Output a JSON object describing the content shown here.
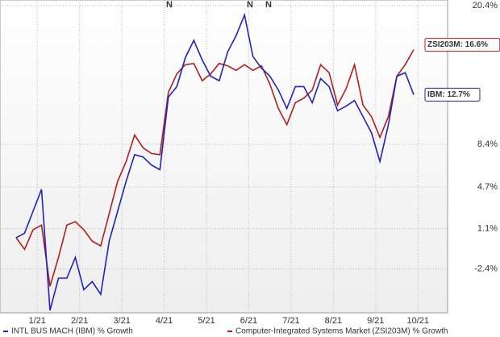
{
  "chart_data": {
    "type": "line",
    "x": [
      0,
      0.2,
      0.4,
      0.6,
      0.8,
      1.0,
      1.2,
      1.4,
      1.6,
      1.8,
      2.0,
      2.2,
      2.4,
      2.6,
      2.8,
      3.0,
      3.2,
      3.4,
      3.6,
      3.8,
      4.0,
      4.2,
      4.4,
      4.6,
      4.8,
      5.0,
      5.2,
      5.4,
      5.6,
      5.8,
      6.0,
      6.2,
      6.4,
      6.6,
      6.8,
      7.0,
      7.2,
      7.4,
      7.6,
      7.8,
      8.0,
      8.2,
      8.4,
      8.6,
      8.8,
      9.0,
      9.2,
      9.4
    ],
    "xlim": [
      0,
      10.2
    ],
    "xticks": [
      {
        "value": 0.5,
        "label": "1/21"
      },
      {
        "value": 1.5,
        "label": "2/21"
      },
      {
        "value": 2.5,
        "label": "3/21"
      },
      {
        "value": 3.5,
        "label": "4/21"
      },
      {
        "value": 4.5,
        "label": "5/21"
      },
      {
        "value": 5.5,
        "label": "6/21"
      },
      {
        "value": 6.5,
        "label": "7/21"
      },
      {
        "value": 7.5,
        "label": "8/21"
      },
      {
        "value": 8.5,
        "label": "9/21"
      },
      {
        "value": 9.5,
        "label": "10/21"
      }
    ],
    "ylim": [
      -6.2,
      20.9
    ],
    "yticks": [
      {
        "value": 20.4,
        "label": "20.4%"
      },
      {
        "value": 8.4,
        "label": "8.4%"
      },
      {
        "value": 4.7,
        "label": "4.7%"
      },
      {
        "value": 1.1,
        "label": "1.1%"
      },
      {
        "value": -2.4,
        "label": "-2.4%"
      }
    ],
    "grid": true,
    "legend": "bottom",
    "series": [
      {
        "name": "INTL BUS MACH (IBM) % Growth",
        "color": "#2222bb",
        "end_label": "IBM: 12.7%",
        "values": [
          0.3,
          0.7,
          2.6,
          4.5,
          -6.0,
          -3.2,
          -3.2,
          -1.4,
          -4.2,
          -3.5,
          -4.6,
          0.0,
          2.6,
          5.2,
          7.5,
          7.3,
          6.6,
          6.2,
          12.5,
          13.4,
          15.9,
          17.4,
          15.7,
          14.3,
          13.9,
          16.4,
          17.8,
          19.6,
          16.0,
          15.0,
          14.3,
          13.1,
          11.5,
          13.4,
          13.4,
          12.0,
          14.1,
          13.4,
          11.3,
          11.7,
          12.2,
          10.8,
          9.4,
          6.9,
          10.1,
          14.3,
          14.6,
          12.7
        ]
      },
      {
        "name": "Computer-Integrated Systems Market (ZSI203M) % Growth",
        "color": "#b01e1e",
        "end_label": "ZSI203M: 16.6%",
        "values": [
          0.3,
          -0.7,
          1.0,
          1.4,
          -3.9,
          -1.4,
          1.4,
          1.7,
          1.0,
          0.0,
          -0.4,
          2.4,
          5.2,
          6.9,
          9.2,
          8.1,
          7.6,
          7.5,
          12.9,
          14.5,
          15.3,
          15.4,
          13.9,
          14.5,
          15.4,
          15.2,
          14.8,
          15.3,
          14.8,
          15.2,
          13.6,
          11.5,
          10.1,
          12.0,
          12.4,
          13.1,
          15.3,
          14.6,
          11.8,
          13.2,
          15.3,
          11.8,
          10.8,
          9.0,
          10.8,
          14.3,
          15.3,
          16.6
        ]
      }
    ],
    "annotations": [
      "N",
      "N",
      "N"
    ]
  }
}
